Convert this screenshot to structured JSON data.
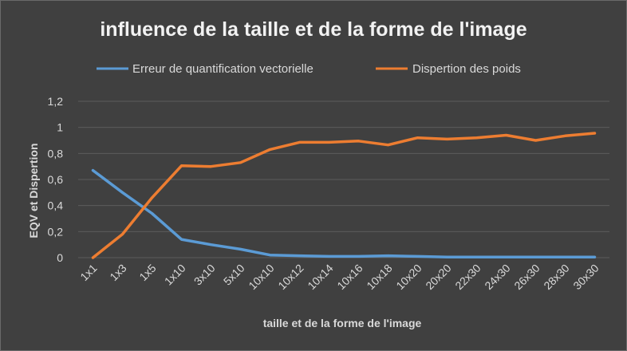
{
  "chart_data": {
    "type": "line",
    "title": "influence de la taille et de la forme de l'image",
    "xlabel": "taille et de la forme de l'image",
    "ylabel": "EQV et Dispertion",
    "ylim": [
      0,
      1.2
    ],
    "yticks": [
      0,
      0.2,
      0.4,
      0.6,
      0.8,
      1,
      1.2
    ],
    "ytick_labels": [
      "0",
      "0,2",
      "0,4",
      "0,6",
      "0,8",
      "1",
      "1,2"
    ],
    "categories": [
      "1x1",
      "1x3",
      "1x5",
      "1x10",
      "3x10",
      "5x10",
      "10x10",
      "10x12",
      "10x14",
      "10x16",
      "10x18",
      "10x20",
      "20x20",
      "22x30",
      "24x30",
      "26x30",
      "28x30",
      "30x30"
    ],
    "legend_position": "top",
    "series": [
      {
        "name": "Erreur de quantification vectorielle",
        "color": "#5b9bd5",
        "values": [
          0.67,
          0.5,
          0.34,
          0.14,
          0.1,
          0.065,
          0.02,
          0.015,
          0.01,
          0.01,
          0.015,
          0.01,
          0.005,
          0.005,
          0.005,
          0.005,
          0.005,
          0.005
        ]
      },
      {
        "name": "Dispertion des poids",
        "color": "#ed7d31",
        "values": [
          0.0,
          0.18,
          0.46,
          0.705,
          0.7,
          0.73,
          0.83,
          0.885,
          0.885,
          0.895,
          0.865,
          0.92,
          0.91,
          0.92,
          0.94,
          0.9,
          0.935,
          0.955
        ]
      }
    ]
  }
}
